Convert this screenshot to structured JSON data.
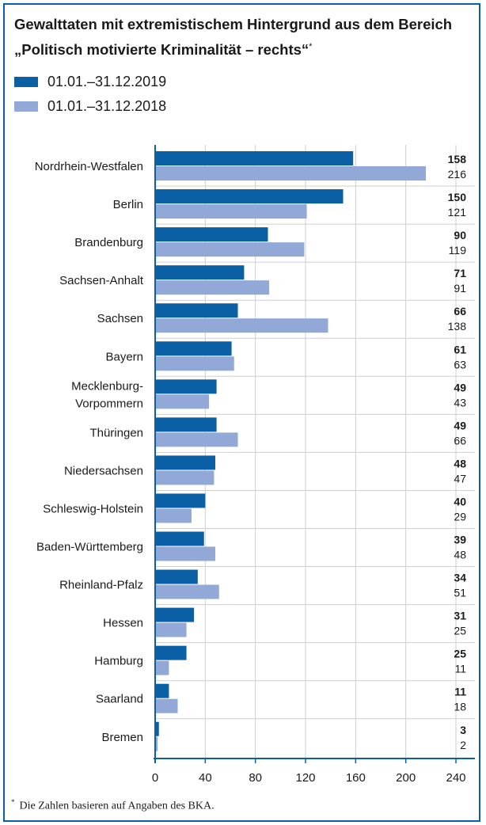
{
  "title_line1": "Gewalttaten mit extremistischem Hintergrund aus dem Bereich",
  "title_line2": "„Politisch motivierte Kriminalität – rechts“",
  "title_mark": "*",
  "footnote_mark": "*",
  "footnote_text": "Die Zahlen basieren auf Angaben des BKA.",
  "colors": {
    "frame": "#0b5fa5",
    "series_2019": "#0b5fa5",
    "series_2018": "#92a9d8",
    "grid": "#cfcfcf"
  },
  "chart_data": {
    "type": "bar",
    "orientation": "horizontal",
    "title": "Gewalttaten mit extremistischem Hintergrund aus dem Bereich „Politisch motivierte Kriminalität – rechts“",
    "categories": [
      "Nordrhein-Westfalen",
      "Berlin",
      "Brandenburg",
      "Sachsen-Anhalt",
      "Sachsen",
      "Bayern",
      "Mecklenburg-\nVorpommern",
      "Thüringen",
      "Niedersachsen",
      "Schleswig-Holstein",
      "Baden-Württemberg",
      "Rheinland-Pfalz",
      "Hessen",
      "Hamburg",
      "Saarland",
      "Bremen"
    ],
    "series": [
      {
        "name": "01.01.–31.12.2019",
        "color": "#0b5fa5",
        "values": [
          158,
          150,
          90,
          71,
          66,
          61,
          49,
          49,
          48,
          40,
          39,
          34,
          31,
          25,
          11,
          3
        ]
      },
      {
        "name": "01.01.–31.12.2018",
        "color": "#92a9d8",
        "values": [
          216,
          121,
          119,
          91,
          138,
          63,
          43,
          66,
          47,
          29,
          48,
          51,
          25,
          11,
          18,
          2
        ]
      }
    ],
    "xlim": [
      0,
      240
    ],
    "xticks": [
      0,
      40,
      80,
      120,
      160,
      200,
      240
    ],
    "grid": true,
    "legend": "top-left",
    "value_labels": "right"
  }
}
